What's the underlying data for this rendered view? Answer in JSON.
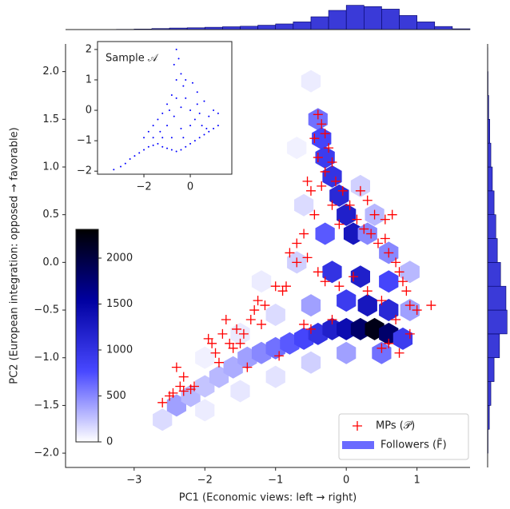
{
  "chart_data": [
    {
      "type": "hexbin",
      "xlabel": "PC1 (Economic views: left → right)",
      "ylabel": "PC2 (European integration: opposed → favorable)",
      "xlim": [
        -3.97,
        1.75
      ],
      "ylim": [
        -2.15,
        2.29
      ],
      "xticks": [
        {
          "value": -3,
          "label": "−3"
        },
        {
          "value": -2,
          "label": "−2"
        },
        {
          "value": -1,
          "label": "−1"
        },
        0,
        1
      ],
      "yticks": [
        {
          "value": -2,
          "label": "−2.0"
        },
        {
          "value": -1.5,
          "label": "−1.5"
        },
        {
          "value": -1,
          "label": "−1.0"
        },
        {
          "value": -0.5,
          "label": "−0.5"
        },
        {
          "value": 0,
          "label": "0.0"
        },
        {
          "value": 0.5,
          "label": "0.5"
        },
        {
          "value": 1,
          "label": "1.0"
        },
        {
          "value": 1.5,
          "label": "1.5"
        },
        {
          "value": 2,
          "label": "2.0"
        }
      ],
      "legend": "lower right",
      "cmap": [
        "#ffffff",
        "#4848ff",
        "#0000a0",
        "#000000"
      ],
      "colorbar": {
        "lim": [
          0,
          2313
        ],
        "ticks": [
          0,
          500,
          1000,
          1500,
          2000
        ]
      },
      "hexbin": {
        "name": "Followers (F̃)",
        "color": "#6a6aff",
        "x": [
          -2.6,
          -2.4,
          -2.2,
          -2.0,
          -1.8,
          -1.6,
          -1.4,
          -1.2,
          -1.0,
          -0.8,
          -0.6,
          -0.4,
          -0.2,
          0.0,
          0.2,
          0.4,
          0.6,
          0.8,
          -2.0,
          -1.5,
          -1.0,
          -0.5,
          0.0,
          0.5,
          -2.0,
          -1.5,
          -1.0,
          -0.5,
          0.0,
          0.3,
          0.6,
          0.9,
          -1.2,
          -0.7,
          -0.2,
          0.2,
          0.6,
          0.9,
          -0.4,
          -0.35,
          -0.3,
          -0.2,
          -0.1,
          0.0,
          0.1,
          -0.3,
          0.3,
          0.4,
          0.6,
          -0.6,
          -0.5,
          -0.7,
          0.2
        ],
        "y": [
          -1.65,
          -1.5,
          -1.4,
          -1.3,
          -1.2,
          -1.1,
          -1.0,
          -0.95,
          -0.9,
          -0.85,
          -0.8,
          -0.75,
          -0.7,
          -0.7,
          -0.7,
          -0.7,
          -0.75,
          -0.8,
          -1.55,
          -1.35,
          -1.2,
          -1.05,
          -0.95,
          -0.95,
          -1.0,
          -0.75,
          -0.55,
          -0.45,
          -0.4,
          -0.45,
          -0.5,
          -0.5,
          -0.2,
          0.0,
          -0.1,
          -0.15,
          -0.2,
          -0.1,
          1.5,
          1.3,
          1.1,
          0.9,
          0.7,
          0.5,
          0.3,
          0.3,
          0.3,
          0.5,
          0.1,
          0.6,
          1.9,
          1.2,
          0.8
        ],
        "values": [
          150,
          400,
          300,
          250,
          300,
          350,
          400,
          500,
          600,
          700,
          800,
          1000,
          1200,
          1400,
          1800,
          2200,
          1800,
          900,
          80,
          100,
          120,
          200,
          400,
          600,
          60,
          90,
          150,
          400,
          900,
          1300,
          1100,
          400,
          80,
          200,
          1000,
          1200,
          800,
          300,
          600,
          800,
          900,
          1000,
          1100,
          1200,
          1300,
          700,
          500,
          300,
          500,
          150,
          80,
          60,
          200
        ]
      },
      "series": [
        {
          "name": "MPs (𝒫)",
          "color": "#ff0000",
          "x": [
            -2.6,
            -2.5,
            -2.45,
            -2.35,
            -2.3,
            -2.2,
            -2.15,
            -2.3,
            -2.4,
            -1.95,
            -1.9,
            -1.85,
            -1.8,
            -1.75,
            -1.7,
            -1.65,
            -1.6,
            -1.55,
            -1.5,
            -1.45,
            -1.4,
            -1.35,
            -1.3,
            -1.25,
            -1.2,
            -1.15,
            -1.0,
            -0.95,
            -0.9,
            -0.85,
            -0.6,
            -0.7,
            -0.8,
            -0.5,
            -0.4,
            -0.35,
            -0.3,
            -0.45,
            -0.25,
            -0.4,
            -0.2,
            -0.3,
            -0.15,
            -0.05,
            -0.35,
            -0.45,
            -0.2,
            0.05,
            0.15,
            -0.1,
            0.25,
            0.35,
            0.45,
            0.55,
            0.6,
            0.7,
            0.75,
            0.8,
            0.85,
            0.9,
            1.0,
            1.2,
            0.65,
            0.55,
            0.4,
            0.3,
            0.2,
            -0.6,
            -0.7,
            -0.55,
            -0.4,
            -0.3,
            -0.1,
            0.1,
            0.3,
            0.5,
            0.7,
            0.9,
            0.6,
            0.75,
            0.5,
            -0.2,
            -0.5,
            -0.55
          ],
          "y": [
            -1.47,
            -1.4,
            -1.37,
            -1.3,
            -1.35,
            -1.33,
            -1.3,
            -1.2,
            -1.1,
            -0.8,
            -0.85,
            -0.95,
            -1.05,
            -0.75,
            -0.6,
            -0.85,
            -0.9,
            -0.7,
            -0.85,
            -0.75,
            -1.1,
            -0.6,
            -0.5,
            -0.4,
            -0.65,
            -0.45,
            -0.25,
            -0.98,
            -0.3,
            -0.25,
            -0.65,
            0.0,
            0.1,
            -0.7,
            1.55,
            1.45,
            1.35,
            1.3,
            1.2,
            1.1,
            1.05,
            0.95,
            0.85,
            0.75,
            0.8,
            0.5,
            0.6,
            0.6,
            0.45,
            0.4,
            0.35,
            0.3,
            0.2,
            0.25,
            0.1,
            0.0,
            -0.1,
            -0.2,
            -0.3,
            -0.45,
            -0.5,
            -0.45,
            0.5,
            0.45,
            0.5,
            0.65,
            0.75,
            0.3,
            0.2,
            0.05,
            -0.1,
            -0.2,
            -0.25,
            -0.15,
            -0.3,
            -0.4,
            -0.6,
            -0.75,
            -0.85,
            -0.95,
            -0.9,
            -0.6,
            0.75,
            0.85
          ]
        }
      ]
    },
    {
      "type": "histogram",
      "orientation": "vertical",
      "color": "#3a3ad8",
      "edgecolor": "#000060",
      "bins": [
        -3.75,
        -3.5,
        -3.25,
        -3.0,
        -2.75,
        -2.5,
        -2.25,
        -2.0,
        -1.75,
        -1.5,
        -1.25,
        -1.0,
        -0.75,
        -0.5,
        -0.25,
        0.0,
        0.25,
        0.5,
        0.75,
        1.0,
        1.25,
        1.5,
        1.75
      ],
      "values": [
        0,
        0,
        0.01,
        0.02,
        0.04,
        0.06,
        0.07,
        0.09,
        0.11,
        0.13,
        0.17,
        0.22,
        0.3,
        0.5,
        0.75,
        0.95,
        0.9,
        0.8,
        0.55,
        0.3,
        0.12,
        0.03
      ],
      "ylim": [
        0,
        1
      ]
    },
    {
      "type": "histogram",
      "orientation": "horizontal",
      "color": "#3a3ad8",
      "edgecolor": "#000060",
      "bins": [
        -2.0,
        -1.75,
        -1.5,
        -1.25,
        -1.0,
        -0.75,
        -0.5,
        -0.25,
        0.0,
        0.25,
        0.5,
        0.75,
        1.0,
        1.25,
        1.5,
        1.75,
        2.0,
        2.25
      ],
      "values": [
        0.02,
        0.08,
        0.15,
        0.3,
        0.55,
        0.9,
        0.85,
        0.6,
        0.45,
        0.38,
        0.3,
        0.22,
        0.15,
        0.1,
        0.05,
        0.02,
        0.01
      ],
      "xlim": [
        0,
        1
      ]
    },
    {
      "type": "scatter",
      "title": "Sample 𝒜",
      "color": "#0000ff",
      "xlim": [
        -4.0,
        1.79
      ],
      "ylim": [
        -2.1,
        2.26
      ],
      "xticks": [
        {
          "value": -2,
          "label": "−2"
        },
        0
      ],
      "yticks": [
        {
          "value": -2,
          "label": "−2"
        },
        {
          "value": -1,
          "label": "−1"
        },
        0,
        1,
        2
      ],
      "x": [
        -3.3,
        -3.0,
        -2.8,
        -2.6,
        -2.4,
        -2.2,
        -2.0,
        -1.8,
        -1.6,
        -1.4,
        -1.2,
        -1.0,
        -0.8,
        -0.6,
        -0.4,
        -0.2,
        0.0,
        0.2,
        0.4,
        0.6,
        0.8,
        1.0,
        1.2,
        -2.0,
        -1.8,
        -1.6,
        -1.4,
        -1.2,
        -1.0,
        -0.8,
        -0.6,
        -0.7,
        -0.6,
        -0.5,
        -0.4,
        -0.3,
        -0.2,
        0.0,
        0.2,
        0.5,
        0.8,
        1.0,
        0.6,
        0.3,
        0.1,
        -0.2,
        -1.3,
        -1.0,
        -0.7,
        -0.4,
        -0.8,
        -0.4,
        0.0,
        0.4,
        -1.6,
        -1.2,
        -0.6,
        -0.3,
        0.7,
        1.2,
        -0.9,
        0.3
      ],
      "y": [
        -1.95,
        -1.85,
        -1.75,
        -1.6,
        -1.5,
        -1.4,
        -1.3,
        -1.2,
        -1.15,
        -1.1,
        -1.2,
        -1.25,
        -1.3,
        -1.35,
        -1.3,
        -1.2,
        -1.1,
        -1.0,
        -0.9,
        -0.8,
        -0.7,
        -0.6,
        -0.5,
        -0.9,
        -0.7,
        -0.5,
        -0.3,
        -0.1,
        0.2,
        0.5,
        1.0,
        1.5,
        2.0,
        1.7,
        1.2,
        0.8,
        0.4,
        0.0,
        -0.3,
        -0.5,
        -0.2,
        0.0,
        0.3,
        0.6,
        0.9,
        1.0,
        -0.7,
        -0.5,
        -0.2,
        0.1,
        -0.9,
        -0.6,
        -0.5,
        -0.1,
        -0.9,
        -0.9,
        0.4,
        -0.9,
        -0.6,
        -0.1,
        0.0,
        0.2
      ]
    }
  ]
}
